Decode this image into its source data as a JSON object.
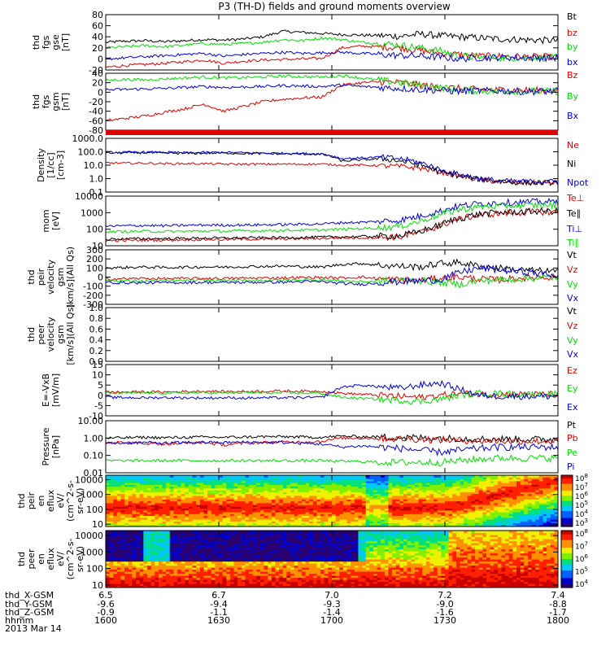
{
  "title": "P3 (TH-D) fields and ground moments overview",
  "date": "2013 Mar 14",
  "colors": {
    "black": "#000000",
    "red": "#e00000",
    "green": "#00e000",
    "blue": "#0000e0"
  },
  "chart_data": [
    {
      "type": "line",
      "id": "fgs_gse",
      "ylabel": [
        "thd",
        "fgs",
        "gse",
        "[nT]"
      ],
      "ylim": [
        -20,
        80
      ],
      "yticks": [
        80,
        60,
        40,
        20,
        0,
        -20
      ],
      "series": [
        {
          "name": "Bt",
          "color": "black",
          "base": [
            30,
            32,
            33,
            31,
            33,
            35,
            34,
            36,
            40,
            50,
            48,
            46,
            44,
            43,
            42,
            41,
            45,
            42,
            40,
            38,
            36,
            35,
            34,
            33
          ]
        },
        {
          "name": "bz",
          "color": "red",
          "base": [
            -15,
            -12,
            -10,
            -8,
            -5,
            -2,
            -8,
            -4,
            -2,
            -1,
            0,
            1,
            20,
            23,
            22,
            20,
            15,
            10,
            8,
            5,
            5,
            4,
            4,
            3
          ]
        },
        {
          "name": "by",
          "color": "green",
          "base": [
            20,
            22,
            24,
            22,
            25,
            28,
            26,
            28,
            30,
            35,
            33,
            38,
            35,
            30,
            28,
            25,
            20,
            15,
            5,
            3,
            2,
            2,
            2,
            2
          ]
        },
        {
          "name": "bx",
          "color": "blue",
          "base": [
            0,
            2,
            4,
            6,
            8,
            10,
            5,
            8,
            10,
            12,
            10,
            11,
            12,
            10,
            8,
            6,
            5,
            3,
            0,
            2,
            3,
            2,
            2,
            2
          ]
        }
      ]
    },
    {
      "type": "line",
      "id": "fgs_gsm",
      "ylabel": [
        "thd",
        "fgs",
        "gsm",
        "[nT]"
      ],
      "ylim": [
        -80,
        40
      ],
      "yticks": [
        40,
        20,
        0,
        -20,
        -40,
        -60,
        -80
      ],
      "series": [
        {
          "name": "Bz",
          "color": "red",
          "base": [
            -60,
            -55,
            -50,
            -42,
            -35,
            -25,
            -40,
            -30,
            -20,
            -15,
            -12,
            -10,
            15,
            20,
            22,
            20,
            15,
            10,
            8,
            5,
            5,
            4,
            4,
            3
          ]
        },
        {
          "name": "By",
          "color": "green",
          "base": [
            25,
            27,
            26,
            28,
            30,
            32,
            30,
            31,
            32,
            34,
            33,
            32,
            35,
            30,
            25,
            20,
            15,
            10,
            5,
            3,
            2,
            2,
            2,
            2
          ]
        },
        {
          "name": "Bx",
          "color": "blue",
          "base": [
            5,
            6,
            7,
            8,
            10,
            12,
            10,
            11,
            12,
            14,
            13,
            12,
            15,
            12,
            10,
            8,
            6,
            4,
            2,
            3,
            3,
            2,
            2,
            2
          ]
        }
      ]
    },
    {
      "type": "bar",
      "id": "flag",
      "bar_color": "red"
    },
    {
      "type": "line",
      "id": "density",
      "ylabel": [
        "Density",
        "[1/cc]",
        "[cm-3]"
      ],
      "scale": "log",
      "ylim": [
        0.1,
        1000
      ],
      "yticks": [
        "1000.0",
        "100.0",
        "10.0",
        "1.0",
        "0.1"
      ],
      "series": [
        {
          "name": "Ne",
          "color": "red",
          "base": [
            15,
            14,
            14,
            13,
            13,
            13,
            12,
            12,
            12,
            12,
            12,
            12,
            10,
            10,
            9,
            8,
            6,
            3,
            1.5,
            0.8,
            0.6,
            0.5,
            0.5,
            0.5
          ]
        },
        {
          "name": "Ni",
          "color": "black",
          "base": [
            80,
            82,
            85,
            80,
            75,
            78,
            80,
            75,
            72,
            70,
            68,
            65,
            20,
            25,
            30,
            20,
            10,
            3,
            1.5,
            0.9,
            0.6,
            0.5,
            0.5,
            0.5
          ]
        },
        {
          "name": "Npot",
          "color": "blue",
          "base": [
            90,
            92,
            95,
            90,
            85,
            88,
            90,
            85,
            80,
            78,
            75,
            70,
            30,
            35,
            40,
            30,
            15,
            4,
            2,
            1,
            0.7,
            0.6,
            0.6,
            0.6
          ]
        }
      ]
    },
    {
      "type": "line",
      "id": "mom",
      "ylabel": [
        "mom",
        "[eV]"
      ],
      "scale": "log",
      "ylim": [
        10,
        10000
      ],
      "yticks": [
        "10000",
        "1000",
        "100",
        "10"
      ],
      "series": [
        {
          "name": "Te⊥",
          "color": "red",
          "base": [
            20,
            21,
            22,
            22,
            23,
            24,
            24,
            25,
            25,
            26,
            27,
            28,
            30,
            30,
            32,
            35,
            60,
            150,
            400,
            700,
            900,
            1000,
            1100,
            1100
          ]
        },
        {
          "name": "Te∥",
          "color": "black",
          "base": [
            25,
            26,
            27,
            27,
            28,
            29,
            29,
            30,
            30,
            31,
            32,
            33,
            35,
            36,
            38,
            40,
            70,
            170,
            450,
            800,
            1000,
            1100,
            1200,
            1200
          ]
        },
        {
          "name": "Ti⊥",
          "color": "blue",
          "base": [
            150,
            160,
            170,
            160,
            170,
            180,
            175,
            180,
            185,
            190,
            200,
            210,
            250,
            260,
            300,
            350,
            600,
            1200,
            2500,
            3500,
            4000,
            4200,
            4500,
            4500
          ]
        },
        {
          "name": "Ti∥",
          "color": "green",
          "base": [
            70,
            72,
            75,
            72,
            74,
            78,
            76,
            80,
            82,
            85,
            88,
            90,
            100,
            110,
            120,
            150,
            300,
            700,
            1500,
            2200,
            2500,
            2700,
            2800,
            2800
          ]
        }
      ]
    },
    {
      "type": "line",
      "id": "peir",
      "ylabel": [
        "thd",
        "peir",
        "velocity",
        "gsm",
        "[km/s](All Qs)"
      ],
      "ylim": [
        -300,
        300
      ],
      "yticks": [
        "300",
        "200",
        "100",
        "0",
        "-100",
        "-200",
        "-300"
      ],
      "series": [
        {
          "name": "Vt",
          "color": "black",
          "base": [
            100,
            105,
            110,
            105,
            108,
            112,
            110,
            115,
            118,
            120,
            115,
            110,
            140,
            150,
            130,
            120,
            110,
            150,
            160,
            120,
            100,
            80,
            70,
            60
          ]
        },
        {
          "name": "Vz",
          "color": "red",
          "base": [
            -20,
            -18,
            -15,
            -18,
            -16,
            -14,
            -15,
            -12,
            -10,
            -8,
            -5,
            -5,
            -10,
            0,
            -20,
            -30,
            -40,
            -10,
            0,
            -20,
            -30,
            -10,
            0,
            0
          ]
        },
        {
          "name": "Vy",
          "color": "green",
          "base": [
            -40,
            -42,
            -44,
            -42,
            -40,
            -38,
            -40,
            -38,
            -36,
            -35,
            -30,
            -30,
            -40,
            -50,
            -45,
            -35,
            -40,
            -60,
            -80,
            -40,
            -30,
            -20,
            -10,
            0
          ]
        },
        {
          "name": "Vx",
          "color": "blue",
          "base": [
            -60,
            -62,
            -64,
            -62,
            -60,
            -58,
            -60,
            -58,
            -56,
            -55,
            -50,
            -50,
            -70,
            -80,
            -60,
            -50,
            -40,
            -30,
            50,
            100,
            80,
            60,
            40,
            20
          ]
        }
      ]
    },
    {
      "type": "line",
      "id": "peer",
      "ylabel": [
        "thd",
        "peer",
        "velocity",
        "gsm",
        "[km/s](All Qs)"
      ],
      "ylim": [
        0,
        1
      ],
      "yticks": [
        "1.0",
        "0.8",
        "0.6",
        "0.4",
        "0.2",
        "0.0"
      ],
      "series": [
        {
          "name": "Vt",
          "color": "black",
          "base": []
        },
        {
          "name": "Vz",
          "color": "red",
          "base": []
        },
        {
          "name": "Vy",
          "color": "green",
          "base": []
        },
        {
          "name": "Vx",
          "color": "blue",
          "base": []
        }
      ]
    },
    {
      "type": "line",
      "id": "efield",
      "ylabel": [
        "E=-VxB",
        "[mV/m]"
      ],
      "ylim": [
        -10,
        15
      ],
      "yticks": [
        "15",
        "10",
        "5",
        "0",
        "-5",
        "-10"
      ],
      "series": [
        {
          "name": "Ez",
          "color": "red",
          "base": [
            1.5,
            1.6,
            1.7,
            1.6,
            1.8,
            2,
            1.8,
            1.9,
            2,
            2.1,
            2,
            2,
            1,
            0.5,
            0,
            -0.5,
            -1,
            0,
            1,
            0.5,
            0.5,
            0.5,
            0.5,
            0.5
          ]
        },
        {
          "name": "Ey",
          "color": "green",
          "base": [
            1,
            1.1,
            1.2,
            1.1,
            1.2,
            1.3,
            1.2,
            1.3,
            1.2,
            1.2,
            1.1,
            1,
            -1,
            -1.5,
            -2,
            -2.5,
            -3,
            -2,
            0,
            1,
            1,
            0.5,
            0.5,
            0.5
          ]
        },
        {
          "name": "Ex",
          "color": "blue",
          "base": [
            -1,
            -1.1,
            -1.2,
            -1.1,
            -1.2,
            -1.3,
            -1.2,
            -1.3,
            -1.2,
            -1.2,
            -1.1,
            -1,
            4,
            5,
            4,
            3.5,
            5,
            6,
            3,
            0,
            -0.5,
            -0.5,
            -0.5,
            -0.5
          ]
        }
      ]
    },
    {
      "type": "line",
      "id": "pressure",
      "ylabel": [
        "Pressure",
        "[nPa]"
      ],
      "scale": "log",
      "ylim": [
        0.01,
        10
      ],
      "yticks": [
        "10.00",
        "1.00",
        "0.10",
        "0.01"
      ],
      "series": [
        {
          "name": "Pt",
          "color": "black",
          "base": [
            1,
            1.05,
            1.1,
            1.05,
            1.1,
            1.15,
            1.1,
            1.15,
            1.2,
            1.2,
            1.15,
            1.1,
            1.3,
            1.2,
            1.15,
            1.1,
            1.05,
            1,
            0.95,
            0.9,
            0.88,
            0.86,
            0.85,
            0.85
          ]
        },
        {
          "name": "Pb",
          "color": "red",
          "base": [
            0.6,
            0.55,
            0.5,
            0.45,
            0.5,
            0.55,
            0.4,
            0.5,
            0.55,
            0.6,
            0.6,
            0.65,
            1,
            1,
            0.95,
            0.9,
            0.85,
            0.8,
            0.75,
            0.7,
            0.7,
            0.68,
            0.66,
            0.65
          ]
        },
        {
          "name": "Pe",
          "color": "green",
          "base": [
            0.05,
            0.05,
            0.05,
            0.05,
            0.05,
            0.05,
            0.05,
            0.05,
            0.05,
            0.05,
            0.05,
            0.05,
            0.045,
            0.045,
            0.04,
            0.04,
            0.04,
            0.04,
            0.05,
            0.06,
            0.07,
            0.07,
            0.07,
            0.07
          ]
        },
        {
          "name": "Pi",
          "color": "blue",
          "base": [
            0.5,
            0.52,
            0.55,
            0.52,
            0.55,
            0.58,
            0.55,
            0.58,
            0.56,
            0.55,
            0.5,
            0.45,
            0.3,
            0.35,
            0.3,
            0.25,
            0.2,
            0.15,
            0.2,
            0.25,
            0.3,
            0.3,
            0.3,
            0.3
          ]
        }
      ]
    },
    {
      "type": "heatmap",
      "id": "peir_eflux",
      "ylabel": [
        "thd",
        "peir",
        "en",
        "eflux",
        "eV/",
        "(cm^2-s-",
        "sr-eV)"
      ],
      "scale": "log",
      "ylim": [
        7,
        20000
      ],
      "yticks": [
        "10000",
        "1000",
        "100",
        "10"
      ],
      "colorbar": {
        "labels": [
          "10^8",
          "10^7",
          "10^6",
          "10^5",
          "10^4",
          "10^3"
        ]
      },
      "variant": "ion"
    },
    {
      "type": "heatmap",
      "id": "peer_eflux",
      "ylabel": [
        "thd",
        "peer",
        "en",
        "eflux",
        "eV/",
        "(cm^2-s-",
        "sr-eV)"
      ],
      "scale": "log",
      "ylim": [
        7,
        20000
      ],
      "yticks": [
        "10000",
        "1000",
        "100",
        "10"
      ],
      "colorbar": {
        "labels": [
          "10^8",
          "10^7",
          "10^6",
          "10^5",
          "10^4"
        ]
      },
      "variant": "electron"
    }
  ],
  "legends": [
    [
      "Bt",
      "bz",
      "by",
      "bx"
    ],
    [
      "Bz",
      "By",
      "Bx"
    ],
    [],
    [
      "Ne",
      "Ni",
      "Npot"
    ],
    [
      "Te⊥",
      "Te∥",
      "Ti⊥",
      "Ti∥"
    ],
    [
      "Vt",
      "Vz",
      "Vy",
      "Vx"
    ],
    [
      "Vt",
      "Vz",
      "Vy",
      "Vx"
    ],
    [
      "Ez",
      "Ey",
      "Ex"
    ],
    [
      "Pt",
      "Pb",
      "Pe",
      "Pi"
    ]
  ],
  "x_axis": {
    "rows": [
      {
        "label": "thd_X-GSM",
        "values": [
          "6.5",
          "6.7",
          "7.0",
          "7.2",
          "7.4"
        ]
      },
      {
        "label": "thd_Y-GSM",
        "values": [
          "-9.6",
          "-9.4",
          "-9.3",
          "-9.0",
          "-8.8"
        ]
      },
      {
        "label": "thd_Z-GSM",
        "values": [
          "-0.9",
          "-1.1",
          "-1.4",
          "-1.6",
          "-1.7"
        ]
      },
      {
        "label": "hhmm",
        "values": [
          "1600",
          "1630",
          "1700",
          "1730",
          "1800"
        ]
      }
    ]
  }
}
